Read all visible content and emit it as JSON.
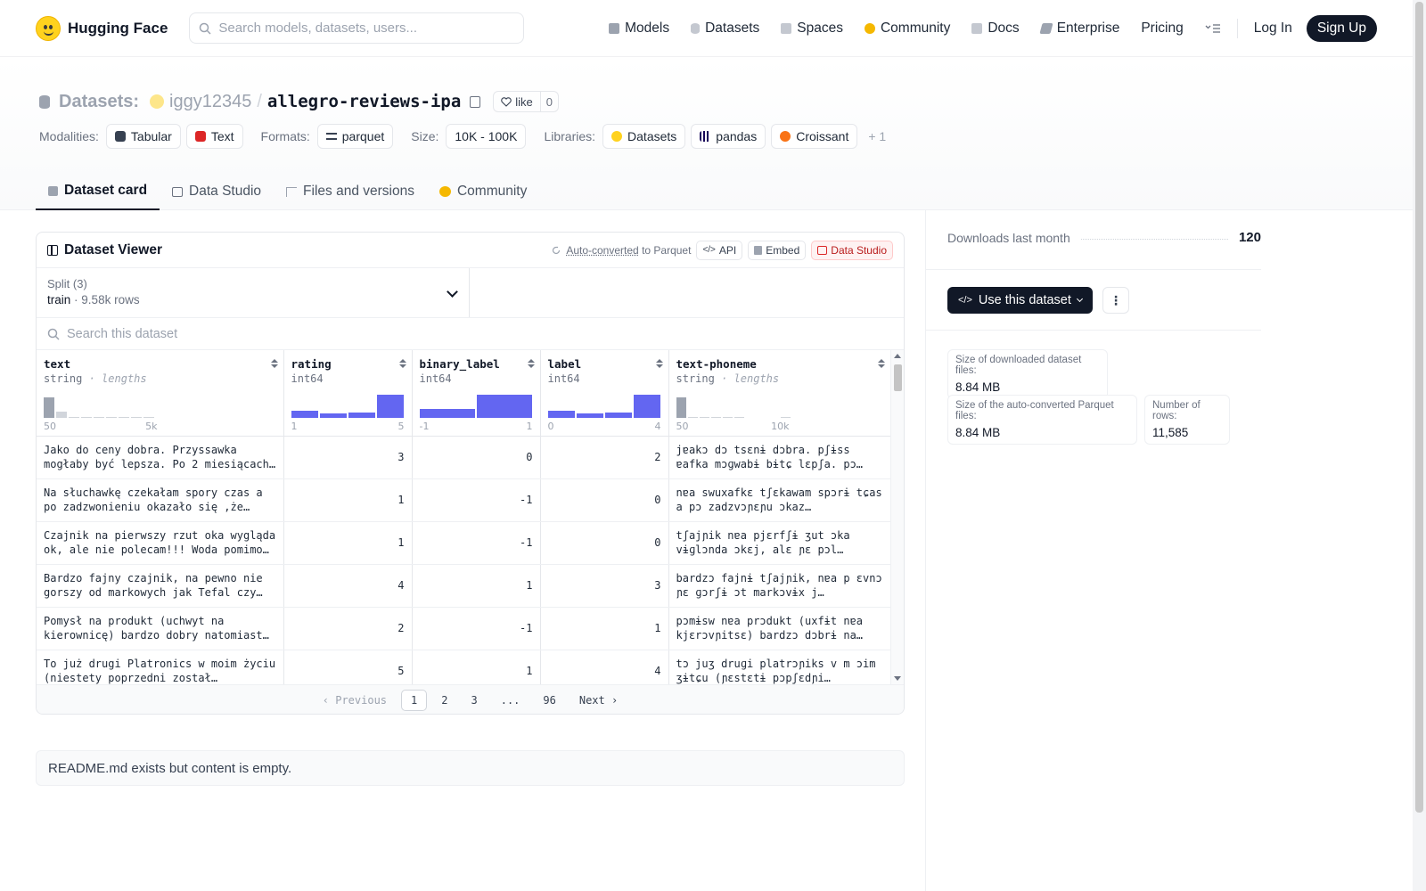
{
  "nav": {
    "brand": "Hugging Face",
    "search_placeholder": "Search models, datasets, users...",
    "links": [
      {
        "label": "Models",
        "icon": "cube-icon",
        "color": "#9ca3af"
      },
      {
        "label": "Datasets",
        "icon": "database-icon",
        "color": "#9ca3af"
      },
      {
        "label": "Spaces",
        "icon": "grid-icon",
        "color": "#9ca3af"
      },
      {
        "label": "Community",
        "icon": "community-icon",
        "color": "#f5b800"
      },
      {
        "label": "Docs",
        "icon": "book-icon",
        "color": "#9ca3af"
      },
      {
        "label": "Enterprise",
        "icon": "enterprise-icon",
        "color": "#9ca3af"
      },
      {
        "label": "Pricing"
      }
    ],
    "login": "Log In",
    "signup": "Sign Up"
  },
  "header": {
    "kind": "Datasets:",
    "owner": "iggy12345",
    "slash": "/",
    "name": "allegro-reviews-ipa",
    "like_label": "like",
    "like_count": "0",
    "modalities_label": "Modalities:",
    "modalities": [
      "Tabular",
      "Text"
    ],
    "formats_label": "Formats:",
    "formats": [
      "parquet"
    ],
    "size_label": "Size:",
    "size": "10K - 100K",
    "libraries_label": "Libraries:",
    "libraries": [
      "Datasets",
      "pandas",
      "Croissant"
    ],
    "libraries_more": "+ 1"
  },
  "tabs": [
    "Dataset card",
    "Data Studio",
    "Files and versions",
    "Community"
  ],
  "viewer": {
    "title": "Dataset Viewer",
    "auto_converted": "Auto-converted",
    "to_parquet": "to Parquet",
    "api": "API",
    "embed": "Embed",
    "data_studio": "Data Studio",
    "split_label": "Split (3)",
    "split_value": "train",
    "split_dot": "·",
    "split_rows": "9.58k rows",
    "search_placeholder": "Search this dataset",
    "columns": [
      {
        "name": "text",
        "type": "string",
        "extra": "lengths",
        "axis_min": "50",
        "axis_max": "5k",
        "hist": [
          0.9,
          0.25,
          0.05,
          0.05,
          0.05,
          0.05,
          0.05,
          0.05,
          0.05
        ],
        "gray": true
      },
      {
        "name": "rating",
        "type": "int64",
        "extra": "",
        "axis_min": "1",
        "axis_max": "5",
        "hist": [
          0.3,
          0.18,
          0.22,
          1.0
        ],
        "gray": false
      },
      {
        "name": "binary_label",
        "type": "int64",
        "extra": "",
        "axis_min": "-1",
        "axis_max": "1",
        "hist": [
          0.4,
          1.0
        ],
        "gray": false
      },
      {
        "name": "label",
        "type": "int64",
        "extra": "",
        "axis_min": "0",
        "axis_max": "4",
        "hist": [
          0.3,
          0.18,
          0.22,
          1.0
        ],
        "gray": false
      },
      {
        "name": "text-phoneme",
        "type": "string",
        "extra": "lengths",
        "axis_min": "50",
        "axis_max": "10k",
        "hist": [
          0.9,
          0.05,
          0.05,
          0.05,
          0.05,
          0.05,
          0.0,
          0.0,
          0.0,
          0.05
        ],
        "gray": true
      }
    ],
    "rows": [
      {
        "text": "Jako do ceny dobra. Przyssawka mogłaby być lepsza. Po 2 miesiącach…",
        "rating": "3",
        "binary_label": "0",
        "label": "2",
        "phoneme": "jɐakɔ dɔ tsɛnɨ dɔbra. pʃɨss ɐafka mɔɡwabɨ bɨtɕ lɛpʃa. pɔ…"
      },
      {
        "text": "Na słuchawkę czekałam spory czas a po zadzwonieniu okazało się ,że paczka i…",
        "rating": "1",
        "binary_label": "-1",
        "label": "0",
        "phoneme": "nɐa swuxafkɛ tʃɛkawam spɔrɨ tɕas a pɔ zadzvɔɲɛɲu ɔkaz…"
      },
      {
        "text": "Czajnik na pierwszy rzut oka wygląda ok, ale nie polecam!!! Woda pomimo…",
        "rating": "1",
        "binary_label": "-1",
        "label": "0",
        "phoneme": "tʃajɲik nɐa pjɛrfʃɨ ʒut ɔka vɨɡlɔnda ɔkɛj, alɛ ɲɛ pɔl…"
      },
      {
        "text": "Bardzo fajny czajnik, na pewno nie gorszy od markowych jak Tefal czy…",
        "rating": "4",
        "binary_label": "1",
        "label": "3",
        "phoneme": "bardzɔ fajnɨ tʃajɲik, nɐa p ɛvnɔ ɲɛ ɡɔrʃɨ ɔt markɔvɨx j…"
      },
      {
        "text": "Pomysł na produkt (uchwyt na kierownicę) bardzo dobry natomiast…",
        "rating": "2",
        "binary_label": "-1",
        "label": "1",
        "phoneme": "pɔmɨsw nɐa prɔdukt (uxfɨt nɐa kjɛrɔvɲitsɛ) bardzɔ dɔbrɨ na…"
      },
      {
        "text": "To już drugi Platronics w moim życiu (niestety poprzedni został zagubiony…",
        "rating": "5",
        "binary_label": "1",
        "label": "4",
        "phoneme": "tɔ juʒ druɡi platrɔɲiks v m ɔim ʒɨtɕu (ɲɛstɛtɨ pɔpʃɛdɲi…"
      }
    ],
    "pager": {
      "prev": "Previous",
      "pages": [
        "1",
        "2",
        "3",
        "...",
        "96"
      ],
      "next": "Next"
    }
  },
  "readme": "README.md exists but content is empty.",
  "sidebar": {
    "downloads_label": "Downloads last month",
    "downloads_value": "120",
    "use_button": "Use this dataset",
    "size_dl_label": "Size of downloaded dataset files:",
    "size_dl_value": "8.84 MB",
    "size_parquet_label": "Size of the auto-converted Parquet files:",
    "size_parquet_value": "8.84 MB",
    "rows_label": "Number of rows:",
    "rows_value": "11,585"
  }
}
